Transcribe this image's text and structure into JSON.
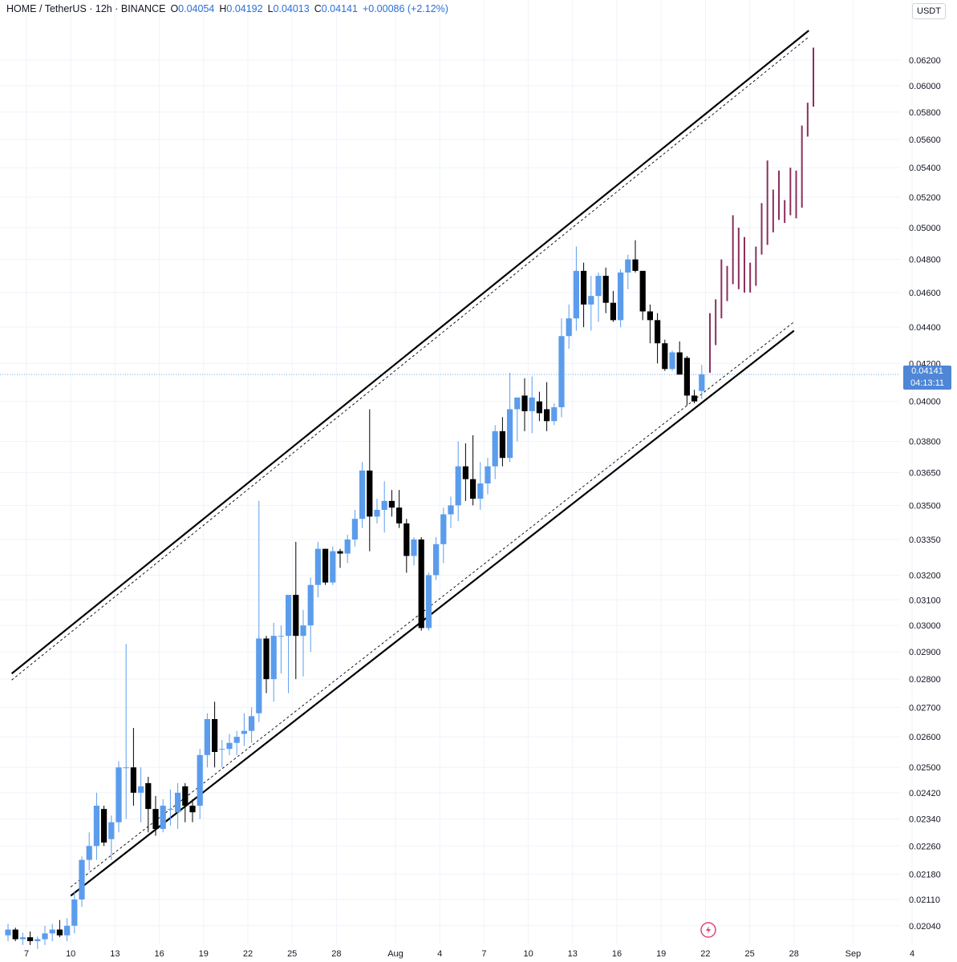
{
  "header": {
    "symbol": "HOME / TetherUS · 12h · BINANCE",
    "o_label": "O",
    "o_value": "0.04054",
    "h_label": "H",
    "h_value": "0.04192",
    "l_label": "L",
    "l_value": "0.04013",
    "c_label": "C",
    "c_value": "0.04141",
    "change": "+0.00086 (+2.12%)"
  },
  "currency_button": "USDT",
  "last_price": {
    "price": "0.04141",
    "countdown": "04:13:11"
  },
  "colors": {
    "up": "#5b9cec",
    "down": "#000000",
    "projection": "#8b2f5c",
    "channel": "#000000",
    "price_tag": "#4f86d6",
    "grid": "#f0f3fa"
  },
  "icons": {
    "replay": "lightning-icon"
  },
  "chart_data": {
    "type": "candlestick",
    "scale": "log",
    "y_ticks": [
      "0.06200",
      "0.06000",
      "0.05800",
      "0.05600",
      "0.05400",
      "0.05200",
      "0.05000",
      "0.04800",
      "0.04600",
      "0.04400",
      "0.04200",
      "0.04000",
      "0.03800",
      "0.03650",
      "0.03500",
      "0.03350",
      "0.03200",
      "0.03100",
      "0.03000",
      "0.02900",
      "0.02800",
      "0.02700",
      "0.02600",
      "0.02500",
      "0.02420",
      "0.02340",
      "0.02260",
      "0.02180",
      "0.02110",
      "0.02040"
    ],
    "x_ticks": [
      "7",
      "10",
      "13",
      "16",
      "19",
      "22",
      "25",
      "28",
      "Aug",
      "4",
      "7",
      "10",
      "13",
      "16",
      "19",
      "22",
      "25",
      "28",
      "Sep",
      "4"
    ],
    "ylim": [
      0.02,
      0.065
    ],
    "candles": [
      {
        "date": "Jul 6",
        "o": 0.02015,
        "h": 0.02045,
        "l": 0.02,
        "c": 0.0203
      },
      {
        "date": "Jul 6",
        "o": 0.0203,
        "h": 0.02035,
        "l": 0.02,
        "c": 0.02005
      },
      {
        "date": "Jul 7",
        "o": 0.02005,
        "h": 0.02022,
        "l": 0.0199,
        "c": 0.0201
      },
      {
        "date": "Jul 7",
        "o": 0.0201,
        "h": 0.02025,
        "l": 0.0199,
        "c": 0.02
      },
      {
        "date": "Jul 8",
        "o": 0.02,
        "h": 0.02012,
        "l": 0.0198,
        "c": 0.02005
      },
      {
        "date": "Jul 8",
        "o": 0.02005,
        "h": 0.0204,
        "l": 0.0199,
        "c": 0.0202
      },
      {
        "date": "Jul 9",
        "o": 0.0202,
        "h": 0.02045,
        "l": 0.02,
        "c": 0.0203
      },
      {
        "date": "Jul 9",
        "o": 0.0203,
        "h": 0.02055,
        "l": 0.0201,
        "c": 0.02015
      },
      {
        "date": "Jul 10",
        "o": 0.02015,
        "h": 0.0206,
        "l": 0.02,
        "c": 0.0204
      },
      {
        "date": "Jul 10",
        "o": 0.0204,
        "h": 0.0213,
        "l": 0.0202,
        "c": 0.0211
      },
      {
        "date": "Jul 11",
        "o": 0.0211,
        "h": 0.0223,
        "l": 0.0209,
        "c": 0.0222
      },
      {
        "date": "Jul 11",
        "o": 0.0222,
        "h": 0.023,
        "l": 0.0219,
        "c": 0.0226
      },
      {
        "date": "Jul 12",
        "o": 0.0226,
        "h": 0.0242,
        "l": 0.0222,
        "c": 0.0238
      },
      {
        "date": "Jul 12",
        "o": 0.0237,
        "h": 0.0238,
        "l": 0.0226,
        "c": 0.0227
      },
      {
        "date": "Jul 13",
        "o": 0.0228,
        "h": 0.0235,
        "l": 0.0222,
        "c": 0.0233
      },
      {
        "date": "Jul 13",
        "o": 0.0233,
        "h": 0.0252,
        "l": 0.023,
        "c": 0.025
      },
      {
        "date": "Jul 14",
        "o": 0.025,
        "h": 0.0293,
        "l": 0.0234,
        "c": 0.025
      },
      {
        "date": "Jul 14",
        "o": 0.025,
        "h": 0.0263,
        "l": 0.0238,
        "c": 0.0242
      },
      {
        "date": "Jul 15",
        "o": 0.0242,
        "h": 0.025,
        "l": 0.0233,
        "c": 0.0244
      },
      {
        "date": "Jul 15",
        "o": 0.0245,
        "h": 0.0247,
        "l": 0.023,
        "c": 0.0237
      },
      {
        "date": "Jul 16",
        "o": 0.0237,
        "h": 0.0241,
        "l": 0.0229,
        "c": 0.0231
      },
      {
        "date": "Jul 16",
        "o": 0.0231,
        "h": 0.024,
        "l": 0.023,
        "c": 0.0238
      },
      {
        "date": "Jul 17",
        "o": 0.0237,
        "h": 0.0243,
        "l": 0.0232,
        "c": 0.0237
      },
      {
        "date": "Jul 17",
        "o": 0.0236,
        "h": 0.0245,
        "l": 0.0231,
        "c": 0.0242
      },
      {
        "date": "Jul 18",
        "o": 0.0244,
        "h": 0.0245,
        "l": 0.0233,
        "c": 0.0238
      },
      {
        "date": "Jul 18",
        "o": 0.0238,
        "h": 0.024,
        "l": 0.0233,
        "c": 0.0236
      },
      {
        "date": "Jul 19",
        "o": 0.0238,
        "h": 0.0256,
        "l": 0.0234,
        "c": 0.0254
      },
      {
        "date": "Jul 19",
        "o": 0.0254,
        "h": 0.0268,
        "l": 0.025,
        "c": 0.0266
      },
      {
        "date": "Jul 20",
        "o": 0.0266,
        "h": 0.0272,
        "l": 0.025,
        "c": 0.0255
      },
      {
        "date": "Jul 20",
        "o": 0.0256,
        "h": 0.0259,
        "l": 0.025,
        "c": 0.0256
      },
      {
        "date": "Jul 21",
        "o": 0.0256,
        "h": 0.0261,
        "l": 0.0254,
        "c": 0.0258
      },
      {
        "date": "Jul 21",
        "o": 0.0258,
        "h": 0.0262,
        "l": 0.0254,
        "c": 0.026
      },
      {
        "date": "Jul 22",
        "o": 0.0261,
        "h": 0.0268,
        "l": 0.0257,
        "c": 0.0262
      },
      {
        "date": "Jul 22",
        "o": 0.0262,
        "h": 0.027,
        "l": 0.0258,
        "c": 0.0267
      },
      {
        "date": "Jul 23",
        "o": 0.0268,
        "h": 0.0352,
        "l": 0.0265,
        "c": 0.0295
      },
      {
        "date": "Jul 23",
        "o": 0.0295,
        "h": 0.0296,
        "l": 0.0275,
        "c": 0.028
      },
      {
        "date": "Jul 24",
        "o": 0.028,
        "h": 0.0301,
        "l": 0.0272,
        "c": 0.0296
      },
      {
        "date": "Jul 24",
        "o": 0.0296,
        "h": 0.03,
        "l": 0.0282,
        "c": 0.0296
      },
      {
        "date": "Jul 25",
        "o": 0.0296,
        "h": 0.031,
        "l": 0.0275,
        "c": 0.0312
      },
      {
        "date": "Jul 25",
        "o": 0.0312,
        "h": 0.0334,
        "l": 0.028,
        "c": 0.0296
      },
      {
        "date": "Jul 26",
        "o": 0.0296,
        "h": 0.0306,
        "l": 0.0281,
        "c": 0.03
      },
      {
        "date": "Jul 26",
        "o": 0.03,
        "h": 0.0319,
        "l": 0.029,
        "c": 0.0316
      },
      {
        "date": "Jul 27",
        "o": 0.0316,
        "h": 0.0334,
        "l": 0.0311,
        "c": 0.0331
      },
      {
        "date": "Jul 27",
        "o": 0.0331,
        "h": 0.0331,
        "l": 0.0316,
        "c": 0.0317
      },
      {
        "date": "Jul 28",
        "o": 0.0317,
        "h": 0.0332,
        "l": 0.0316,
        "c": 0.033
      },
      {
        "date": "Jul 28",
        "o": 0.033,
        "h": 0.0331,
        "l": 0.0323,
        "c": 0.0329
      },
      {
        "date": "Jul 29",
        "o": 0.0329,
        "h": 0.0337,
        "l": 0.0325,
        "c": 0.0335
      },
      {
        "date": "Jul 29",
        "o": 0.0335,
        "h": 0.0348,
        "l": 0.0332,
        "c": 0.0344
      },
      {
        "date": "Jul 30",
        "o": 0.0344,
        "h": 0.037,
        "l": 0.034,
        "c": 0.0366
      },
      {
        "date": "Jul 30",
        "o": 0.0366,
        "h": 0.0396,
        "l": 0.033,
        "c": 0.0345
      },
      {
        "date": "Jul 31",
        "o": 0.0345,
        "h": 0.0353,
        "l": 0.0342,
        "c": 0.0348
      },
      {
        "date": "Jul 31",
        "o": 0.0348,
        "h": 0.0361,
        "l": 0.0338,
        "c": 0.0352
      },
      {
        "date": "Aug 1",
        "o": 0.0352,
        "h": 0.0357,
        "l": 0.0345,
        "c": 0.0349
      },
      {
        "date": "Aug 1",
        "o": 0.0349,
        "h": 0.0357,
        "l": 0.034,
        "c": 0.0342
      },
      {
        "date": "Aug 2",
        "o": 0.0342,
        "h": 0.0344,
        "l": 0.0321,
        "c": 0.0328
      },
      {
        "date": "Aug 2",
        "o": 0.0328,
        "h": 0.0336,
        "l": 0.0324,
        "c": 0.0335
      },
      {
        "date": "Aug 3",
        "o": 0.0335,
        "h": 0.0336,
        "l": 0.0298,
        "c": 0.0299
      },
      {
        "date": "Aug 3",
        "o": 0.0299,
        "h": 0.0321,
        "l": 0.0298,
        "c": 0.032
      },
      {
        "date": "Aug 4",
        "o": 0.032,
        "h": 0.0336,
        "l": 0.0318,
        "c": 0.0333
      },
      {
        "date": "Aug 4",
        "o": 0.0333,
        "h": 0.0349,
        "l": 0.0325,
        "c": 0.0346
      },
      {
        "date": "Aug 5",
        "o": 0.0346,
        "h": 0.0354,
        "l": 0.034,
        "c": 0.035
      },
      {
        "date": "Aug 5",
        "o": 0.035,
        "h": 0.038,
        "l": 0.0343,
        "c": 0.0368
      },
      {
        "date": "Aug 6",
        "o": 0.0368,
        "h": 0.0379,
        "l": 0.0352,
        "c": 0.0362
      },
      {
        "date": "Aug 6",
        "o": 0.0362,
        "h": 0.0383,
        "l": 0.035,
        "c": 0.0353
      },
      {
        "date": "Aug 7",
        "o": 0.0353,
        "h": 0.037,
        "l": 0.0348,
        "c": 0.036
      },
      {
        "date": "Aug 7",
        "o": 0.036,
        "h": 0.0372,
        "l": 0.0355,
        "c": 0.0368
      },
      {
        "date": "Aug 8",
        "o": 0.0368,
        "h": 0.0388,
        "l": 0.0362,
        "c": 0.0385
      },
      {
        "date": "Aug 8",
        "o": 0.0385,
        "h": 0.0392,
        "l": 0.0368,
        "c": 0.0372
      },
      {
        "date": "Aug 9",
        "o": 0.0372,
        "h": 0.0415,
        "l": 0.037,
        "c": 0.0396
      },
      {
        "date": "Aug 9",
        "o": 0.0396,
        "h": 0.0402,
        "l": 0.038,
        "c": 0.0402
      },
      {
        "date": "Aug 10",
        "o": 0.0403,
        "h": 0.0412,
        "l": 0.0385,
        "c": 0.0395
      },
      {
        "date": "Aug 10",
        "o": 0.0395,
        "h": 0.0413,
        "l": 0.0384,
        "c": 0.0402
      },
      {
        "date": "Aug 11",
        "o": 0.04,
        "h": 0.0405,
        "l": 0.039,
        "c": 0.0394
      },
      {
        "date": "Aug 11",
        "o": 0.0396,
        "h": 0.041,
        "l": 0.0385,
        "c": 0.039
      },
      {
        "date": "Aug 12",
        "o": 0.039,
        "h": 0.0399,
        "l": 0.0388,
        "c": 0.0397
      },
      {
        "date": "Aug 12",
        "o": 0.0397,
        "h": 0.0445,
        "l": 0.0392,
        "c": 0.0435
      },
      {
        "date": "Aug 13",
        "o": 0.0435,
        "h": 0.0453,
        "l": 0.0428,
        "c": 0.0445
      },
      {
        "date": "Aug 13",
        "o": 0.0445,
        "h": 0.0488,
        "l": 0.0438,
        "c": 0.0473
      },
      {
        "date": "Aug 14",
        "o": 0.0473,
        "h": 0.0478,
        "l": 0.044,
        "c": 0.0453
      },
      {
        "date": "Aug 14",
        "o": 0.0453,
        "h": 0.047,
        "l": 0.0438,
        "c": 0.0458
      },
      {
        "date": "Aug 15",
        "o": 0.0458,
        "h": 0.0472,
        "l": 0.0443,
        "c": 0.047
      },
      {
        "date": "Aug 15",
        "o": 0.047,
        "h": 0.0475,
        "l": 0.0448,
        "c": 0.0454
      },
      {
        "date": "Aug 16",
        "o": 0.0454,
        "h": 0.0461,
        "l": 0.0443,
        "c": 0.0444
      },
      {
        "date": "Aug 16",
        "o": 0.0444,
        "h": 0.0474,
        "l": 0.044,
        "c": 0.0472
      },
      {
        "date": "Aug 17",
        "o": 0.0472,
        "h": 0.0483,
        "l": 0.0462,
        "c": 0.048
      },
      {
        "date": "Aug 17",
        "o": 0.048,
        "h": 0.0492,
        "l": 0.0472,
        "c": 0.0473
      },
      {
        "date": "Aug 18",
        "o": 0.0473,
        "h": 0.0473,
        "l": 0.0444,
        "c": 0.0449
      },
      {
        "date": "Aug 18",
        "o": 0.0449,
        "h": 0.0453,
        "l": 0.0431,
        "c": 0.0444
      },
      {
        "date": "Aug 19",
        "o": 0.0444,
        "h": 0.0448,
        "l": 0.042,
        "c": 0.0431
      },
      {
        "date": "Aug 19",
        "o": 0.0431,
        "h": 0.0433,
        "l": 0.0416,
        "c": 0.0417
      },
      {
        "date": "Aug 20",
        "o": 0.0417,
        "h": 0.0427,
        "l": 0.0416,
        "c": 0.0426
      },
      {
        "date": "Aug 20",
        "o": 0.0426,
        "h": 0.0432,
        "l": 0.0415,
        "c": 0.0414
      },
      {
        "date": "Aug 21",
        "o": 0.0423,
        "h": 0.0424,
        "l": 0.0398,
        "c": 0.0403
      },
      {
        "date": "Aug 21",
        "o": 0.0403,
        "h": 0.0406,
        "l": 0.0399,
        "c": 0.04
      },
      {
        "date": "Aug 22",
        "o": 0.04054,
        "h": 0.04192,
        "l": 0.04013,
        "c": 0.04141
      }
    ],
    "projection_bars": [
      {
        "h": 0.0448,
        "l": 0.0415
      },
      {
        "h": 0.0456,
        "l": 0.043
      },
      {
        "h": 0.048,
        "l": 0.0445
      },
      {
        "h": 0.0476,
        "l": 0.0455
      },
      {
        "h": 0.0508,
        "l": 0.0465
      },
      {
        "h": 0.05,
        "l": 0.0462
      },
      {
        "h": 0.0494,
        "l": 0.046
      },
      {
        "h": 0.0478,
        "l": 0.046
      },
      {
        "h": 0.0488,
        "l": 0.0464
      },
      {
        "h": 0.0516,
        "l": 0.0483
      },
      {
        "h": 0.0545,
        "l": 0.0489
      },
      {
        "h": 0.0525,
        "l": 0.0497
      },
      {
        "h": 0.0538,
        "l": 0.0505
      },
      {
        "h": 0.0518,
        "l": 0.0503
      },
      {
        "h": 0.054,
        "l": 0.0508
      },
      {
        "h": 0.0538,
        "l": 0.0506
      },
      {
        "h": 0.057,
        "l": 0.0513
      },
      {
        "h": 0.0587,
        "l": 0.0562
      },
      {
        "h": 0.063,
        "l": 0.0584
      }
    ],
    "channel": {
      "upper": [
        {
          "date": "Jul 6",
          "v": 0.0282
        },
        {
          "date": "Aug 29",
          "v": 0.0644
        }
      ],
      "lower": [
        {
          "date": "Jul 10",
          "v": 0.0212
        },
        {
          "date": "Aug 28",
          "v": 0.0438
        }
      ]
    }
  }
}
